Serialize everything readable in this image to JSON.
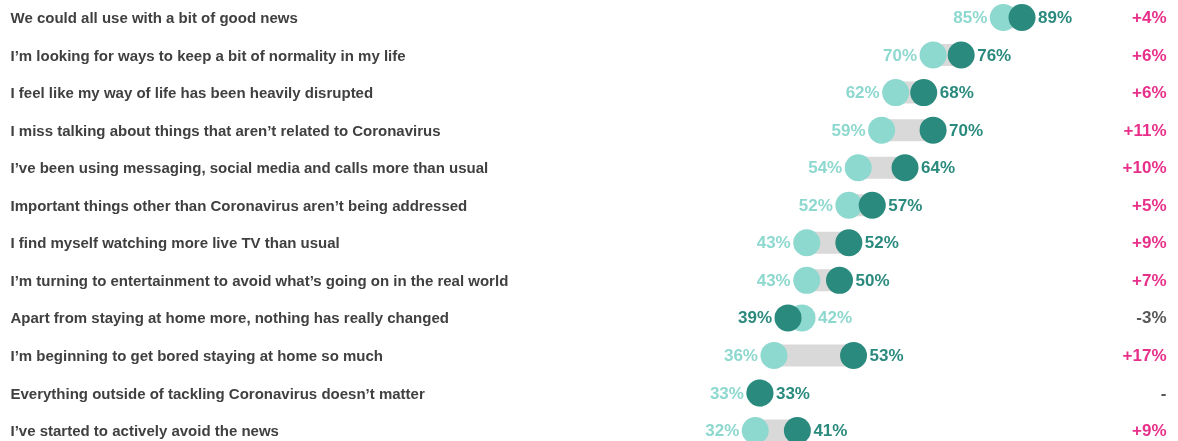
{
  "chart_data": {
    "type": "scatter",
    "orientation": "horizontal",
    "marker": "circle",
    "categories": [
      "We could all use with a bit of good news",
      "I’m looking for ways to keep a bit of normality in my life",
      "I feel like my way of life has been heavily disrupted",
      "I miss talking about things that aren’t related to Coronavirus",
      "I’ve been using messaging, social media and calls more than usual",
      "Important things other than Coronavirus aren’t being addressed",
      "I find myself watching more live TV than usual",
      "I’m turning to entertainment to avoid what’s going on in the real world",
      "Apart from staying at home more, nothing has really changed",
      "I’m beginning to get bored staying at home so much",
      "Everything outside of tackling Coronavirus doesn’t matter",
      "I’ve started to actively avoid the news"
    ],
    "series": [
      {
        "color": "#8dd8cf",
        "values": [
          85,
          70,
          62,
          59,
          54,
          52,
          43,
          43,
          42,
          36,
          33,
          32
        ],
        "value_labels": [
          "85%",
          "70%",
          "62%",
          "59%",
          "54%",
          "52%",
          "43%",
          "43%",
          "42%",
          "36%",
          "33%",
          "32%"
        ]
      },
      {
        "color": "#2b8a7e",
        "values": [
          89,
          76,
          68,
          70,
          64,
          57,
          52,
          50,
          39,
          53,
          33,
          41
        ],
        "value_labels": [
          "89%",
          "76%",
          "68%",
          "70%",
          "64%",
          "57%",
          "52%",
          "50%",
          "39%",
          "53%",
          "33%",
          "41%"
        ]
      }
    ],
    "annotations": [
      "+4%",
      "+6%",
      "+6%",
      "+11%",
      "+10%",
      "+5%",
      "+9%",
      "+7%",
      "-3%",
      "+17%",
      "-",
      "+9%"
    ]
  }
}
